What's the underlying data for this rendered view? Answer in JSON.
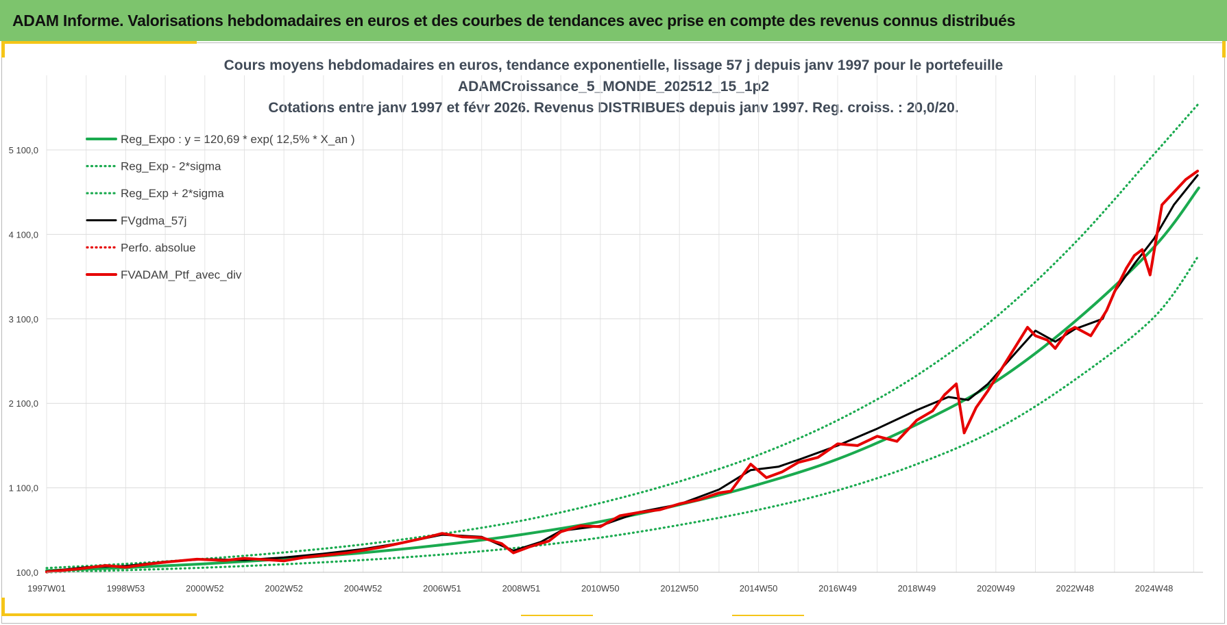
{
  "banner": {
    "title": "ADAM Informe. Valorisations hebdomadaires en euros et des courbes de tendances avec prise en compte des revenus connus distribués"
  },
  "colors": {
    "banner": "#7dc46d",
    "accent_yellow": "#f5c518",
    "reg_green": "#1aaa4f",
    "gdma_black": "#000000",
    "ptf_red": "#e60000"
  },
  "chart_data": {
    "type": "line",
    "title_lines": [
      "Cours moyens hebdomadaires  en euros, tendance exponentielle, lissage 57 j depuis janv 1997 pour le portefeuille",
      "ADAMCroissance_5_MONDE_202512_15_1p2",
      "Cotations  entre janv 1997 et févr 2026. Revenus DISTRIBUES depuis janv 1997. Reg. croiss. : 20,0/20."
    ],
    "xlabel": "",
    "ylabel": "",
    "y_ticks": [
      "100,0",
      "1 100,0",
      "2 100,0",
      "3 100,0",
      "4 100,0",
      "5 100,0"
    ],
    "y_tick_values": [
      100,
      1100,
      2100,
      3100,
      4100,
      5100
    ],
    "ylim": [
      100,
      5850
    ],
    "x_ticks": [
      "1997W01",
      "1998W53",
      "2000W52",
      "2002W52",
      "2004W52",
      "2006W51",
      "2008W51",
      "2010W50",
      "2012W50",
      "2014W50",
      "2016W49",
      "2018W49",
      "2020W49",
      "2022W48",
      "2024W48"
    ],
    "x_tick_years": [
      1997.0,
      1999.0,
      2001.0,
      2003.0,
      2005.0,
      2007.0,
      2009.0,
      2011.0,
      2013.0,
      2015.0,
      2017.0,
      2019.0,
      2021.0,
      2023.0,
      2025.0
    ],
    "xlim": [
      1997.0,
      2026.13
    ],
    "grid": true,
    "legend_position": "top-left",
    "series": [
      {
        "name": "Reg_Expo : y = 120,69 * exp( 12,5% *  X_an )",
        "style": "solid-thick",
        "color": "#1aaa4f",
        "x": [
          1997,
          1999,
          2001,
          2003,
          2005,
          2007,
          2009,
          2011,
          2013,
          2015,
          2017,
          2019,
          2021,
          2023,
          2025,
          2026.13
        ],
        "values": [
          120,
          155,
          200,
          257,
          331,
          425,
          546,
          700,
          900,
          1140,
          1440,
          1850,
          2360,
          3070,
          3950,
          4650
        ]
      },
      {
        "name": "Reg_Exp - 2*sigma",
        "style": "dotted",
        "color": "#1aaa4f",
        "x": [
          1997,
          1999,
          2001,
          2003,
          2005,
          2007,
          2009,
          2011,
          2013,
          2015,
          2017,
          2019,
          2021,
          2023,
          2025,
          2026.13
        ],
        "values": [
          100,
          125,
          155,
          195,
          245,
          310,
          395,
          510,
          660,
          840,
          1070,
          1380,
          1790,
          2380,
          3120,
          3850
        ]
      },
      {
        "name": "Reg_Exp + 2*sigma",
        "style": "dotted",
        "color": "#1aaa4f",
        "x": [
          1997,
          1999,
          2001,
          2003,
          2005,
          2007,
          2009,
          2011,
          2013,
          2015,
          2017,
          2019,
          2021,
          2023,
          2025,
          2026.13
        ],
        "values": [
          150,
          200,
          260,
          335,
          430,
          555,
          710,
          920,
          1175,
          1490,
          1900,
          2430,
          3120,
          4000,
          5050,
          5650
        ]
      },
      {
        "name": "FVgdma_57j",
        "style": "solid-medium",
        "color": "#000000",
        "x": [
          1997,
          1998,
          1999,
          2000,
          2001,
          2002,
          2003,
          2004,
          2005,
          2006,
          2007,
          2008,
          2008.8,
          2009.5,
          2010,
          2011,
          2012,
          2013,
          2014,
          2014.8,
          2015.5,
          2016,
          2017,
          2018,
          2019,
          2019.8,
          2020.3,
          2020.8,
          2021.5,
          2022,
          2022.5,
          2023,
          2023.7,
          2024,
          2024.5,
          2025,
          2025.5,
          2026.1
        ],
        "values": [
          110,
          160,
          175,
          225,
          255,
          245,
          275,
          320,
          375,
          450,
          545,
          520,
          355,
          460,
          590,
          650,
          815,
          905,
          1080,
          1310,
          1350,
          1430,
          1600,
          1800,
          2020,
          2175,
          2140,
          2330,
          2700,
          2960,
          2830,
          2980,
          3100,
          3420,
          3750,
          4050,
          4450,
          4800
        ]
      },
      {
        "name": "Perfo. absolue",
        "style": "dotted",
        "color": "#e60000",
        "values": []
      },
      {
        "name": "FVADAM_Ptf_avec_div",
        "style": "solid-thick",
        "color": "#e60000",
        "x": [
          1997,
          1997.8,
          1998.5,
          1999,
          1999.6,
          2000,
          2000.8,
          2001.5,
          2002,
          2002.5,
          2003,
          2003.5,
          2004,
          2004.6,
          2005,
          2005.5,
          2006,
          2006.5,
          2007,
          2007.5,
          2008,
          2008.5,
          2008.8,
          2009.2,
          2009.7,
          2010,
          2010.5,
          2011,
          2011.5,
          2012,
          2012.5,
          2013,
          2013.5,
          2014,
          2014.3,
          2014.8,
          2015.2,
          2015.6,
          2016,
          2016.5,
          2017,
          2017.5,
          2018,
          2018.5,
          2019,
          2019.4,
          2019.7,
          2020.0,
          2020.2,
          2020.5,
          2020.8,
          2021,
          2021.4,
          2021.8,
          2022,
          2022.3,
          2022.5,
          2022.8,
          2023,
          2023.4,
          2023.8,
          2024,
          2024.3,
          2024.5,
          2024.7,
          2024.9,
          2025.2,
          2025.5,
          2025.8,
          2026.1
        ],
        "values": [
          105,
          140,
          180,
          160,
          200,
          220,
          255,
          240,
          265,
          250,
          235,
          275,
          300,
          330,
          360,
          400,
          450,
          500,
          560,
          520,
          510,
          440,
          330,
          400,
          470,
          580,
          650,
          640,
          770,
          810,
          840,
          910,
          960,
          1040,
          1060,
          1380,
          1220,
          1290,
          1400,
          1460,
          1620,
          1600,
          1710,
          1650,
          1900,
          2010,
          2200,
          2330,
          1750,
          2050,
          2250,
          2400,
          2700,
          3000,
          2900,
          2850,
          2750,
          2950,
          3000,
          2900,
          3200,
          3420,
          3700,
          3850,
          3920,
          3620,
          4450,
          4600,
          4750,
          4850
        ]
      }
    ]
  }
}
